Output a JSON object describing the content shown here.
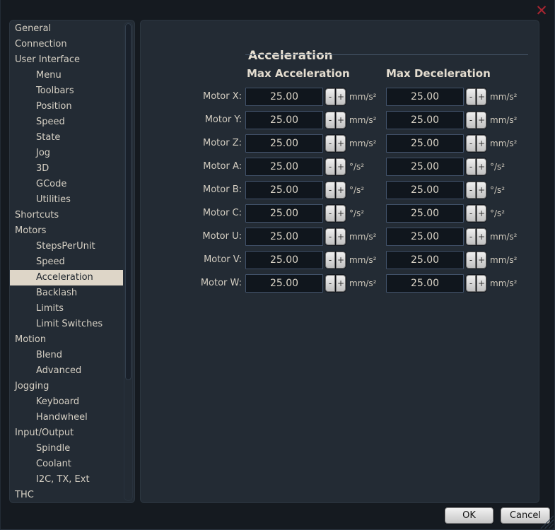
{
  "window": {
    "close_glyph": "✕"
  },
  "sidebar": {
    "items": [
      {
        "label": "General",
        "level": 0,
        "selected": false
      },
      {
        "label": "Connection",
        "level": 0,
        "selected": false
      },
      {
        "label": "User Interface",
        "level": 0,
        "selected": false
      },
      {
        "label": "Menu",
        "level": 1,
        "selected": false
      },
      {
        "label": "Toolbars",
        "level": 1,
        "selected": false
      },
      {
        "label": "Position",
        "level": 1,
        "selected": false
      },
      {
        "label": "Speed",
        "level": 1,
        "selected": false
      },
      {
        "label": "State",
        "level": 1,
        "selected": false
      },
      {
        "label": "Jog",
        "level": 1,
        "selected": false
      },
      {
        "label": "3D",
        "level": 1,
        "selected": false
      },
      {
        "label": "GCode",
        "level": 1,
        "selected": false
      },
      {
        "label": "Utilities",
        "level": 1,
        "selected": false
      },
      {
        "label": "Shortcuts",
        "level": 0,
        "selected": false
      },
      {
        "label": "Motors",
        "level": 0,
        "selected": false
      },
      {
        "label": "StepsPerUnit",
        "level": 1,
        "selected": false
      },
      {
        "label": "Speed",
        "level": 1,
        "selected": false
      },
      {
        "label": "Acceleration",
        "level": 1,
        "selected": true
      },
      {
        "label": "Backlash",
        "level": 1,
        "selected": false
      },
      {
        "label": "Limits",
        "level": 1,
        "selected": false
      },
      {
        "label": "Limit Switches",
        "level": 1,
        "selected": false
      },
      {
        "label": "Motion",
        "level": 0,
        "selected": false
      },
      {
        "label": "Blend",
        "level": 1,
        "selected": false
      },
      {
        "label": "Advanced",
        "level": 1,
        "selected": false
      },
      {
        "label": "Jogging",
        "level": 0,
        "selected": false
      },
      {
        "label": "Keyboard",
        "level": 1,
        "selected": false
      },
      {
        "label": "Handwheel",
        "level": 1,
        "selected": false
      },
      {
        "label": "Input/Output",
        "level": 0,
        "selected": false
      },
      {
        "label": "Spindle",
        "level": 1,
        "selected": false
      },
      {
        "label": "Coolant",
        "level": 1,
        "selected": false
      },
      {
        "label": "I2C, TX, Ext",
        "level": 1,
        "selected": false
      },
      {
        "label": "THC",
        "level": 0,
        "selected": false
      }
    ]
  },
  "main": {
    "title": "Acceleration",
    "columns": [
      "Max Acceleration",
      "Max Deceleration"
    ],
    "spinner": {
      "minus": "-",
      "plus": "+"
    },
    "rows": [
      {
        "label": "Motor X:",
        "accel": "25.00",
        "decel": "25.00",
        "unit": "mm/s²"
      },
      {
        "label": "Motor Y:",
        "accel": "25.00",
        "decel": "25.00",
        "unit": "mm/s²"
      },
      {
        "label": "Motor Z:",
        "accel": "25.00",
        "decel": "25.00",
        "unit": "mm/s²"
      },
      {
        "label": "Motor A:",
        "accel": "25.00",
        "decel": "25.00",
        "unit": "°/s²"
      },
      {
        "label": "Motor B:",
        "accel": "25.00",
        "decel": "25.00",
        "unit": "°/s²"
      },
      {
        "label": "Motor C:",
        "accel": "25.00",
        "decel": "25.00",
        "unit": "°/s²"
      },
      {
        "label": "Motor U:",
        "accel": "25.00",
        "decel": "25.00",
        "unit": "mm/s²"
      },
      {
        "label": "Motor V:",
        "accel": "25.00",
        "decel": "25.00",
        "unit": "mm/s²"
      },
      {
        "label": "Motor W:",
        "accel": "25.00",
        "decel": "25.00",
        "unit": "mm/s²"
      }
    ]
  },
  "footer": {
    "ok": "OK",
    "cancel": "Cancel"
  },
  "colors": {
    "window_bg": "#151a20",
    "panel_bg": "#232b34",
    "selection_bg": "#ded6c8",
    "close_red": "#a82531",
    "input_border": "#42526a"
  }
}
